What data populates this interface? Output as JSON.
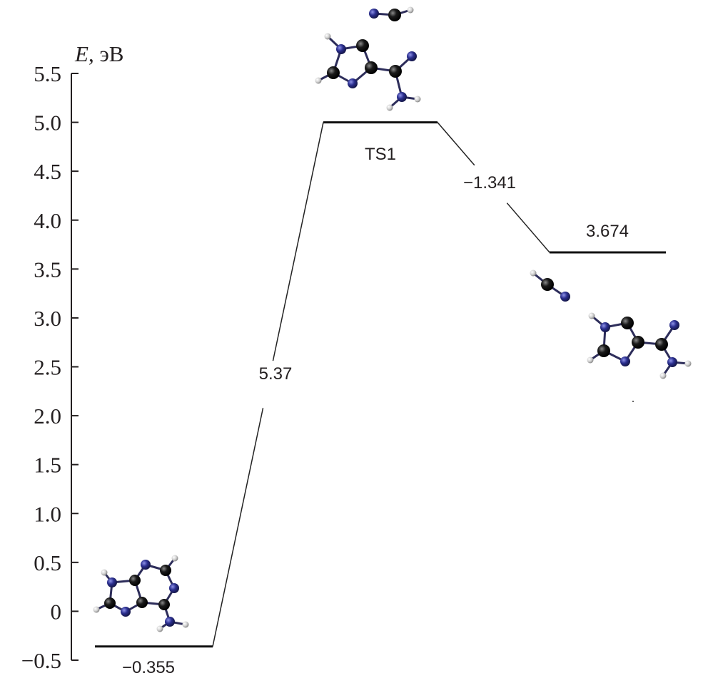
{
  "chart_data": {
    "type": "line",
    "ylabel_symbol": "E",
    "ylabel_unit": ", эВ",
    "ylim": [
      -0.5,
      5.5
    ],
    "yticks": [
      "5.5",
      "5.0",
      "4.5",
      "4.0",
      "3.5",
      "3.0",
      "2.5",
      "2.0",
      "1.5",
      "1.0",
      "0.5",
      "0",
      "−0.5"
    ],
    "ytick_values": [
      5.5,
      5.0,
      4.5,
      4.0,
      3.5,
      3.0,
      2.5,
      2.0,
      1.5,
      1.0,
      0.5,
      0,
      -0.5
    ],
    "levels": [
      {
        "id": "reactant",
        "energy": -0.36,
        "label": "−0.355"
      },
      {
        "id": "ts1",
        "energy": 5.0,
        "label": "TS1"
      },
      {
        "id": "product",
        "energy": 3.67,
        "label": "3.674"
      }
    ],
    "transitions": [
      {
        "from": "reactant",
        "to": "ts1",
        "label": "5.37"
      },
      {
        "from": "ts1",
        "to": "product",
        "label": "−1.341"
      }
    ],
    "grid": false
  },
  "colors": {
    "carbon": "#111111",
    "nitrogen": "#2b2f8f",
    "hydrogen": "#d8d8d8",
    "line": "#111111"
  }
}
